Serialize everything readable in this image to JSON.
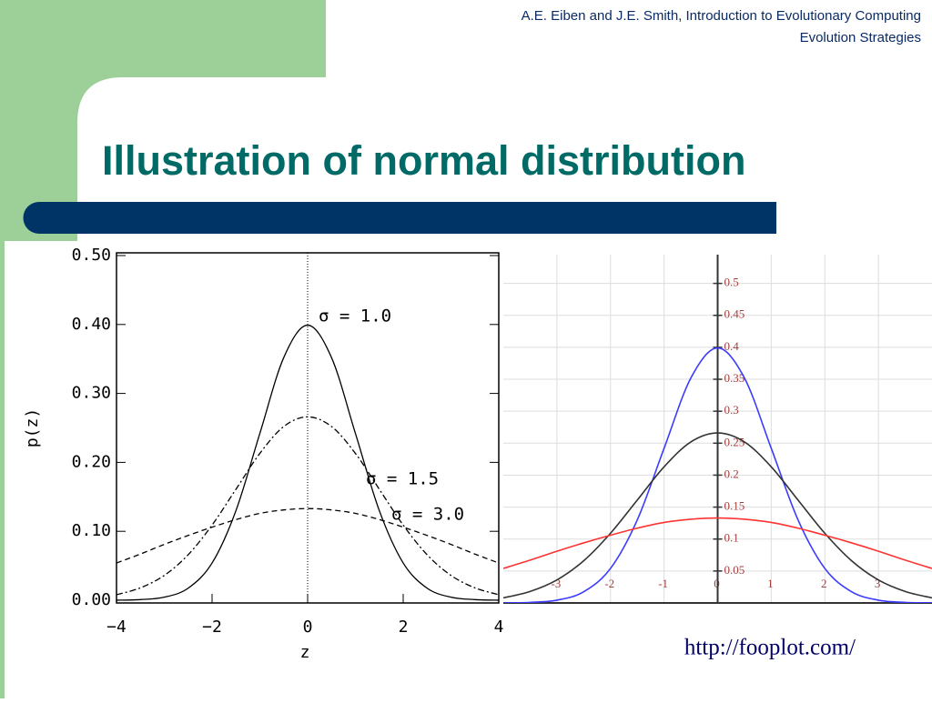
{
  "header": {
    "line1": "A.E. Eiben and J.E. Smith, Introduction to Evolutionary Computing",
    "line2": "Evolution Strategies"
  },
  "title": "Illustration of normal distribution",
  "url": "http://fooplot.com/",
  "chart_data": [
    {
      "type": "line",
      "xlabel": "z",
      "ylabel": "p(z)",
      "x": [
        -4,
        -3.5,
        -3,
        -2.5,
        -2,
        -1.5,
        -1,
        -0.5,
        0,
        0.5,
        1,
        1.5,
        2,
        2.5,
        3,
        3.5,
        4
      ],
      "series": [
        {
          "name": "σ = 1.0",
          "color": "#000000",
          "style": "solid",
          "values": [
            0.0001,
            0.0009,
            0.0044,
            0.0175,
            0.054,
            0.13,
            0.242,
            0.352,
            0.399,
            0.352,
            0.242,
            0.13,
            0.054,
            0.0175,
            0.0044,
            0.0009,
            0.0001
          ]
        },
        {
          "name": "σ = 1.5",
          "color": "#000000",
          "style": "dashdot",
          "values": [
            0.008,
            0.018,
            0.036,
            0.066,
            0.109,
            0.161,
            0.213,
            0.252,
            0.266,
            0.252,
            0.213,
            0.161,
            0.109,
            0.066,
            0.036,
            0.018,
            0.008
          ]
        },
        {
          "name": "σ = 3.0",
          "color": "#000000",
          "style": "dashed",
          "values": [
            0.054,
            0.067,
            0.081,
            0.094,
            0.106,
            0.117,
            0.126,
            0.131,
            0.133,
            0.131,
            0.126,
            0.117,
            0.106,
            0.094,
            0.081,
            0.067,
            0.054
          ]
        }
      ],
      "xlim": [
        -4,
        4
      ],
      "ylim": [
        0,
        0.5
      ],
      "xticks": [
        {
          "value": -4,
          "label": "−4"
        },
        {
          "value": -2,
          "label": "−2"
        },
        0,
        2,
        4
      ],
      "yticks": [
        {
          "value": 0,
          "label": "0.00"
        },
        {
          "value": 0.1,
          "label": "0.10"
        },
        {
          "value": 0.2,
          "label": "0.20"
        },
        {
          "value": 0.3,
          "label": "0.30"
        },
        {
          "value": 0.4,
          "label": "0.40"
        },
        {
          "value": 0.5,
          "label": "0.50"
        }
      ],
      "grid": false
    },
    {
      "type": "line",
      "x": [
        -4,
        -3.5,
        -3,
        -2.5,
        -2,
        -1.5,
        -1,
        -0.5,
        0,
        0.5,
        1,
        1.5,
        2,
        2.5,
        3,
        3.5,
        4
      ],
      "series": [
        {
          "color": "#3b3bff",
          "style": "solid",
          "values": [
            0.0001,
            0.0009,
            0.0044,
            0.0175,
            0.054,
            0.13,
            0.242,
            0.352,
            0.399,
            0.352,
            0.242,
            0.13,
            0.054,
            0.0175,
            0.0044,
            0.0009,
            0.0001
          ]
        },
        {
          "color": "#333333",
          "style": "solid",
          "values": [
            0.008,
            0.018,
            0.036,
            0.066,
            0.109,
            0.161,
            0.213,
            0.252,
            0.266,
            0.252,
            0.213,
            0.161,
            0.109,
            0.066,
            0.036,
            0.018,
            0.008
          ]
        },
        {
          "color": "#ff3333",
          "style": "solid",
          "values": [
            0.054,
            0.067,
            0.081,
            0.094,
            0.106,
            0.117,
            0.126,
            0.131,
            0.133,
            0.131,
            0.126,
            0.117,
            0.106,
            0.094,
            0.081,
            0.067,
            0.054
          ]
        }
      ],
      "xlim": [
        -4,
        4
      ],
      "ylim": [
        0,
        0.545
      ],
      "xticks": [
        -3,
        -2,
        -1,
        0,
        1,
        2,
        3
      ],
      "yticks": [
        0.05,
        0.1,
        0.15,
        0.2,
        0.25,
        0.3,
        0.35,
        0.4,
        0.45,
        0.5
      ],
      "grid": true
    }
  ]
}
